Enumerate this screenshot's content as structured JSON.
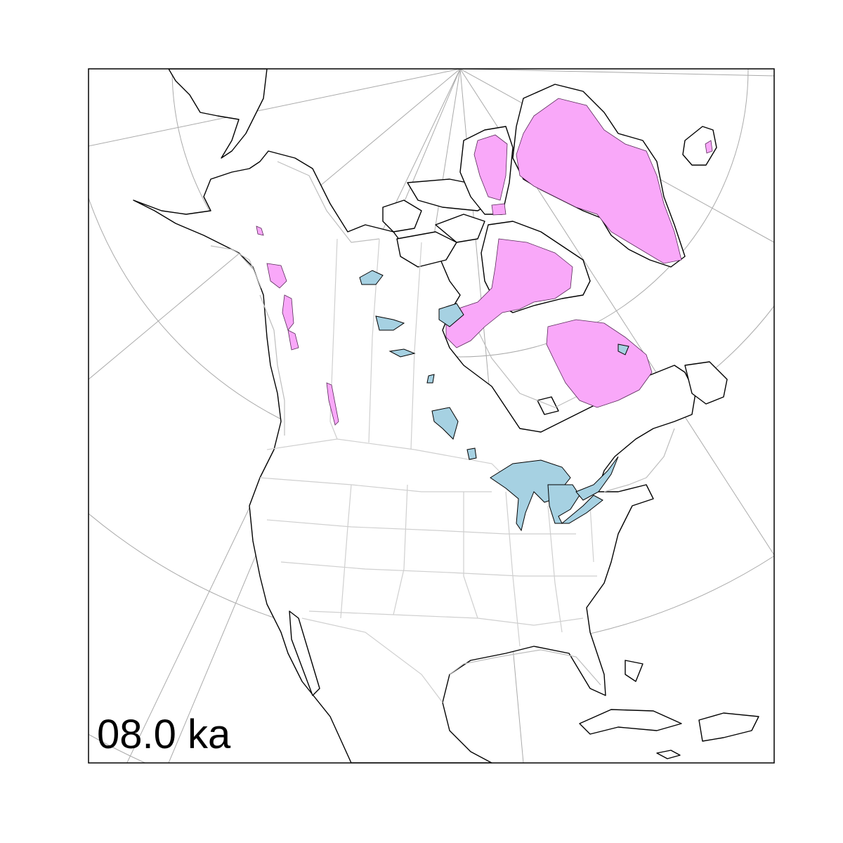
{
  "map": {
    "time_label": "08.0 ka",
    "colors": {
      "ice": "#f9a8f9",
      "lake": "#a6d1e2",
      "land": "#ffffff",
      "coastline": "#000000",
      "paleo_coastline": "#bdbdbd",
      "graticule": "#aaaaaa",
      "borders": "#cfcfcf"
    }
  }
}
